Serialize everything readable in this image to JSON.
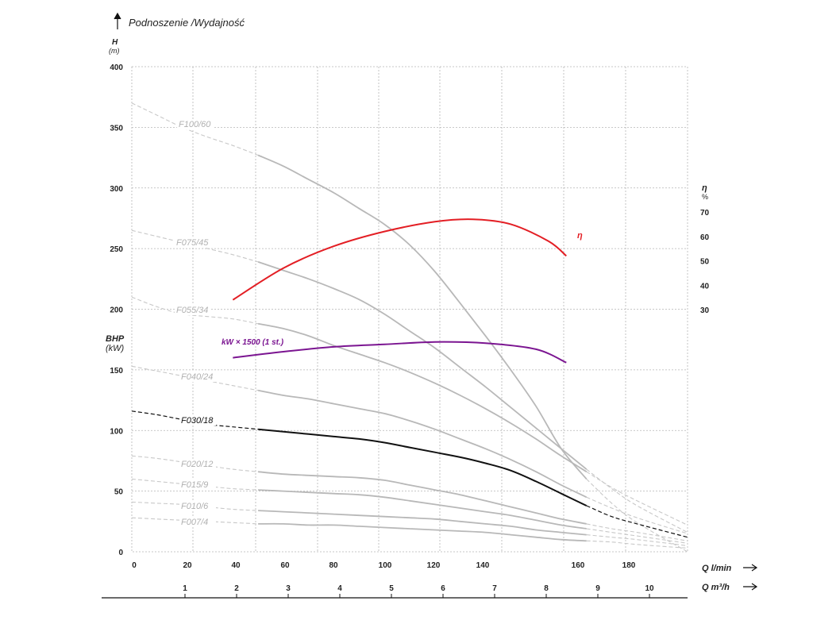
{
  "chart_data": {
    "type": "line",
    "title": "Podnoszenie /Wydajność",
    "ylabel": "H",
    "yunit": "(m)",
    "bhp_label": "BHP",
    "bhp_unit": "(kW)",
    "eta_label": "η",
    "eta_unit": "%",
    "xlabel_lmin": "Q l/min",
    "xlabel_m3h": "Q m³/h",
    "ylim": [
      0,
      400
    ],
    "xlim": [
      0,
      220
    ],
    "y_ticks": [
      0,
      50,
      100,
      150,
      200,
      250,
      300,
      350,
      400
    ],
    "x_ticks_lmin": [
      0,
      20,
      40,
      60,
      80,
      100,
      120,
      140,
      160,
      180
    ],
    "x_ticks_m3h": [
      1,
      2,
      3,
      4,
      5,
      6,
      7,
      8,
      9,
      10
    ],
    "eta_ticks": [
      30,
      40,
      50,
      60,
      70
    ],
    "grid": true,
    "series": [
      {
        "name": "F100/60",
        "color": "#b8b8b8",
        "points": [
          [
            0,
            370
          ],
          [
            10,
            360
          ],
          [
            20,
            350
          ],
          [
            30,
            342
          ],
          [
            40,
            335
          ],
          [
            50,
            327
          ],
          [
            60,
            318
          ],
          [
            70,
            307
          ],
          [
            80,
            296
          ],
          [
            90,
            283
          ],
          [
            100,
            270
          ],
          [
            110,
            253
          ],
          [
            120,
            231
          ],
          [
            130,
            205
          ],
          [
            140,
            178
          ],
          [
            150,
            150
          ],
          [
            160,
            120
          ],
          [
            170,
            85
          ],
          [
            180,
            60
          ],
          [
            190,
            40
          ],
          [
            200,
            24
          ],
          [
            220,
            0
          ]
        ]
      },
      {
        "name": "F075/45",
        "color": "#b8b8b8",
        "points": [
          [
            0,
            265
          ],
          [
            10,
            260
          ],
          [
            20,
            255
          ],
          [
            30,
            250
          ],
          [
            40,
            245
          ],
          [
            50,
            239
          ],
          [
            60,
            232
          ],
          [
            70,
            225
          ],
          [
            80,
            217
          ],
          [
            90,
            208
          ],
          [
            100,
            196
          ],
          [
            110,
            182
          ],
          [
            120,
            168
          ],
          [
            130,
            152
          ],
          [
            140,
            136
          ],
          [
            150,
            119
          ],
          [
            160,
            102
          ],
          [
            170,
            85
          ],
          [
            180,
            68
          ],
          [
            190,
            52
          ],
          [
            200,
            38
          ],
          [
            220,
            16
          ]
        ]
      },
      {
        "name": "F055/34",
        "color": "#b8b8b8",
        "points": [
          [
            0,
            210
          ],
          [
            10,
            202
          ],
          [
            20,
            196
          ],
          [
            30,
            194
          ],
          [
            40,
            192
          ],
          [
            50,
            188
          ],
          [
            60,
            184
          ],
          [
            70,
            178
          ],
          [
            80,
            170
          ],
          [
            90,
            163
          ],
          [
            100,
            156
          ],
          [
            110,
            148
          ],
          [
            120,
            139
          ],
          [
            130,
            129
          ],
          [
            140,
            118
          ],
          [
            150,
            106
          ],
          [
            160,
            93
          ],
          [
            170,
            79
          ],
          [
            180,
            66
          ],
          [
            190,
            53
          ],
          [
            200,
            42
          ],
          [
            220,
            22
          ]
        ]
      },
      {
        "name": "F040/24",
        "color": "#b8b8b8",
        "points": [
          [
            0,
            153
          ],
          [
            10,
            149
          ],
          [
            20,
            145
          ],
          [
            30,
            141
          ],
          [
            40,
            137
          ],
          [
            50,
            133
          ],
          [
            60,
            129
          ],
          [
            70,
            126
          ],
          [
            80,
            122
          ],
          [
            90,
            118
          ],
          [
            100,
            114
          ],
          [
            110,
            108
          ],
          [
            120,
            101
          ],
          [
            130,
            93
          ],
          [
            140,
            85
          ],
          [
            150,
            76
          ],
          [
            160,
            66
          ],
          [
            170,
            55
          ],
          [
            180,
            45
          ],
          [
            190,
            36
          ],
          [
            200,
            28
          ],
          [
            220,
            15
          ]
        ]
      },
      {
        "name": "F030/18",
        "color": "#111111",
        "points": [
          [
            0,
            116
          ],
          [
            10,
            113
          ],
          [
            20,
            109
          ],
          [
            30,
            105
          ],
          [
            40,
            103
          ],
          [
            50,
            101
          ],
          [
            60,
            99
          ],
          [
            70,
            97
          ],
          [
            80,
            95
          ],
          [
            90,
            93
          ],
          [
            100,
            90
          ],
          [
            110,
            86
          ],
          [
            120,
            82
          ],
          [
            130,
            78
          ],
          [
            140,
            73
          ],
          [
            150,
            67
          ],
          [
            160,
            58
          ],
          [
            170,
            48
          ],
          [
            180,
            38
          ],
          [
            190,
            29
          ],
          [
            200,
            23
          ],
          [
            220,
            12
          ]
        ]
      },
      {
        "name": "F020/12",
        "color": "#b8b8b8",
        "points": [
          [
            0,
            79
          ],
          [
            10,
            77
          ],
          [
            20,
            74
          ],
          [
            30,
            71
          ],
          [
            40,
            68
          ],
          [
            50,
            66
          ],
          [
            60,
            64
          ],
          [
            70,
            63
          ],
          [
            80,
            62
          ],
          [
            90,
            61
          ],
          [
            100,
            59
          ],
          [
            110,
            55
          ],
          [
            120,
            51
          ],
          [
            130,
            47
          ],
          [
            140,
            42
          ],
          [
            150,
            37
          ],
          [
            160,
            32
          ],
          [
            170,
            27
          ],
          [
            180,
            23
          ],
          [
            190,
            19
          ],
          [
            200,
            16
          ],
          [
            220,
            9
          ]
        ]
      },
      {
        "name": "F015/9",
        "color": "#b8b8b8",
        "points": [
          [
            0,
            60
          ],
          [
            10,
            58
          ],
          [
            20,
            56
          ],
          [
            30,
            54
          ],
          [
            40,
            52
          ],
          [
            50,
            51
          ],
          [
            60,
            50
          ],
          [
            70,
            49
          ],
          [
            80,
            48
          ],
          [
            90,
            47
          ],
          [
            100,
            45
          ],
          [
            110,
            42
          ],
          [
            120,
            39
          ],
          [
            130,
            36
          ],
          [
            140,
            33
          ],
          [
            150,
            30
          ],
          [
            160,
            26
          ],
          [
            170,
            22
          ],
          [
            180,
            19
          ],
          [
            190,
            16
          ],
          [
            200,
            13
          ],
          [
            220,
            7
          ]
        ]
      },
      {
        "name": "F010/6",
        "color": "#b8b8b8",
        "points": [
          [
            0,
            41
          ],
          [
            10,
            40
          ],
          [
            20,
            39
          ],
          [
            30,
            37
          ],
          [
            40,
            35
          ],
          [
            50,
            34
          ],
          [
            60,
            33
          ],
          [
            70,
            32
          ],
          [
            80,
            31
          ],
          [
            90,
            30
          ],
          [
            100,
            29
          ],
          [
            110,
            28
          ],
          [
            120,
            27
          ],
          [
            130,
            25
          ],
          [
            140,
            23
          ],
          [
            150,
            21
          ],
          [
            160,
            18
          ],
          [
            170,
            16
          ],
          [
            180,
            14
          ],
          [
            190,
            12
          ],
          [
            200,
            10
          ],
          [
            220,
            5
          ]
        ]
      },
      {
        "name": "F007/4",
        "color": "#b8b8b8",
        "points": [
          [
            0,
            28
          ],
          [
            10,
            27
          ],
          [
            20,
            26
          ],
          [
            30,
            25
          ],
          [
            40,
            24
          ],
          [
            50,
            23
          ],
          [
            60,
            23
          ],
          [
            70,
            22
          ],
          [
            80,
            22
          ],
          [
            90,
            21
          ],
          [
            100,
            20
          ],
          [
            110,
            19
          ],
          [
            120,
            18
          ],
          [
            130,
            17
          ],
          [
            140,
            16
          ],
          [
            150,
            14
          ],
          [
            160,
            12
          ],
          [
            170,
            10
          ],
          [
            180,
            9
          ],
          [
            190,
            8
          ],
          [
            200,
            6
          ],
          [
            220,
            3
          ]
        ]
      }
    ],
    "efficiency": {
      "name": "η",
      "color": "#e31e24",
      "points": [
        [
          40,
          34
        ],
        [
          60,
          47
        ],
        [
          80,
          56
        ],
        [
          100,
          62
        ],
        [
          120,
          66
        ],
        [
          135,
          67
        ],
        [
          150,
          65
        ],
        [
          165,
          58
        ],
        [
          172,
          52
        ]
      ]
    },
    "power": {
      "name": "kW × 1500 (1 st.)",
      "color": "#7b1591",
      "points": [
        [
          40,
          160
        ],
        [
          60,
          165
        ],
        [
          80,
          169
        ],
        [
          100,
          171
        ],
        [
          120,
          173
        ],
        [
          140,
          172
        ],
        [
          160,
          167
        ],
        [
          172,
          156
        ]
      ]
    }
  }
}
